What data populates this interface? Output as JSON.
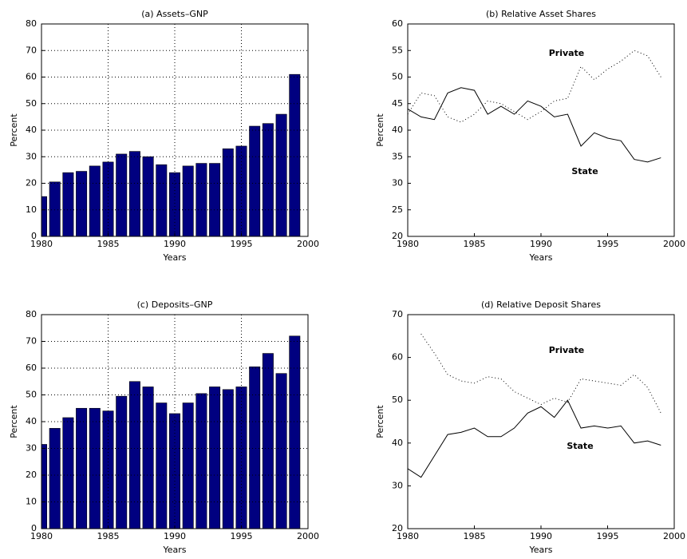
{
  "chart_data": [
    {
      "type": "bar",
      "title": "(a) Assets–GNP",
      "x_label": "Years",
      "y_label": "Percent",
      "x": [
        1980,
        1981,
        1982,
        1983,
        1984,
        1985,
        1986,
        1987,
        1988,
        1989,
        1990,
        1991,
        1992,
        1993,
        1994,
        1995,
        1996,
        1997,
        1998,
        1999
      ],
      "values": [
        15,
        20.5,
        24,
        24.5,
        26.5,
        28,
        31,
        32,
        30,
        27,
        24,
        26.5,
        27.5,
        27.5,
        33,
        34,
        41.5,
        42.5,
        46,
        61
      ],
      "color": "#000080",
      "xlim": [
        1980,
        2000
      ],
      "xticks": [
        1980,
        1985,
        1990,
        1995,
        2000
      ],
      "ylim": [
        0,
        80
      ],
      "yticks": [
        0,
        10,
        20,
        30,
        40,
        50,
        60,
        70,
        80
      ],
      "grid": true
    },
    {
      "type": "line",
      "title": "(b) Relative Asset Shares",
      "x_label": "Years",
      "y_label": "Percent",
      "x": [
        1980,
        1981,
        1982,
        1983,
        1984,
        1985,
        1986,
        1987,
        1988,
        1989,
        1990,
        1991,
        1992,
        1993,
        1994,
        1995,
        1996,
        1997,
        1998,
        1999
      ],
      "series": [
        {
          "name": "Private",
          "color": "#000000",
          "linestyle": "dotted",
          "values": [
            43,
            47,
            46.5,
            42.5,
            41.5,
            43,
            45.5,
            45,
            43.5,
            42,
            43.5,
            45.5,
            46,
            52,
            49.5,
            51.5,
            53,
            55,
            54,
            50
          ]
        },
        {
          "name": "State",
          "color": "#000000",
          "linestyle": "solid",
          "values": [
            44,
            42.5,
            42,
            47,
            48,
            47.5,
            43,
            44.5,
            43,
            45.5,
            44.5,
            42.5,
            43,
            37,
            39.5,
            38.5,
            38,
            34.5,
            34,
            34.8
          ]
        }
      ],
      "xlim": [
        1980,
        2000
      ],
      "xticks": [
        1980,
        1985,
        1990,
        1995,
        2000
      ],
      "ylim": [
        20,
        60
      ],
      "yticks": [
        20,
        25,
        30,
        35,
        40,
        45,
        50,
        55,
        60
      ],
      "grid": false
    },
    {
      "type": "bar",
      "title": "(c) Deposits–GNP",
      "x_label": "Years",
      "y_label": "Percent",
      "x": [
        1980,
        1981,
        1982,
        1983,
        1984,
        1985,
        1986,
        1987,
        1988,
        1989,
        1990,
        1991,
        1992,
        1993,
        1994,
        1995,
        1996,
        1997,
        1998,
        1999
      ],
      "values": [
        31.5,
        37.5,
        41.5,
        45,
        45,
        44,
        49.5,
        55,
        53,
        47,
        43,
        47,
        50.5,
        53,
        52,
        53,
        60.5,
        65.5,
        58,
        72
      ],
      "color": "#000080",
      "xlim": [
        1980,
        2000
      ],
      "xticks": [
        1980,
        1985,
        1990,
        1995,
        2000
      ],
      "ylim": [
        0,
        80
      ],
      "yticks": [
        0,
        10,
        20,
        30,
        40,
        50,
        60,
        70,
        80
      ],
      "grid": true
    },
    {
      "type": "line",
      "title": "(d) Relative Deposit Shares",
      "x_label": "Years",
      "y_label": "Percent",
      "x": [
        1980,
        1981,
        1982,
        1983,
        1984,
        1985,
        1986,
        1987,
        1988,
        1989,
        1990,
        1991,
        1992,
        1993,
        1994,
        1995,
        1996,
        1997,
        1998,
        1999
      ],
      "series": [
        {
          "name": "Private",
          "color": "#000000",
          "linestyle": "dotted",
          "values": [
            null,
            65.5,
            61,
            56,
            54.5,
            54,
            55.5,
            55,
            52,
            50.5,
            49,
            50.5,
            49.5,
            55,
            54.5,
            54,
            53.5,
            56,
            53,
            47
          ]
        },
        {
          "name": "State",
          "color": "#000000",
          "linestyle": "solid",
          "values": [
            34,
            32,
            37,
            42,
            42.5,
            43.5,
            41.5,
            41.5,
            43.5,
            47,
            48.5,
            46,
            50,
            43.5,
            44,
            43.5,
            44,
            40,
            40.5,
            39.5
          ]
        }
      ],
      "xlim": [
        1980,
        2000
      ],
      "xticks": [
        1980,
        1985,
        1990,
        1995,
        2000
      ],
      "ylim": [
        20,
        70
      ],
      "yticks": [
        20,
        30,
        40,
        50,
        60,
        70
      ],
      "grid": false
    }
  ]
}
